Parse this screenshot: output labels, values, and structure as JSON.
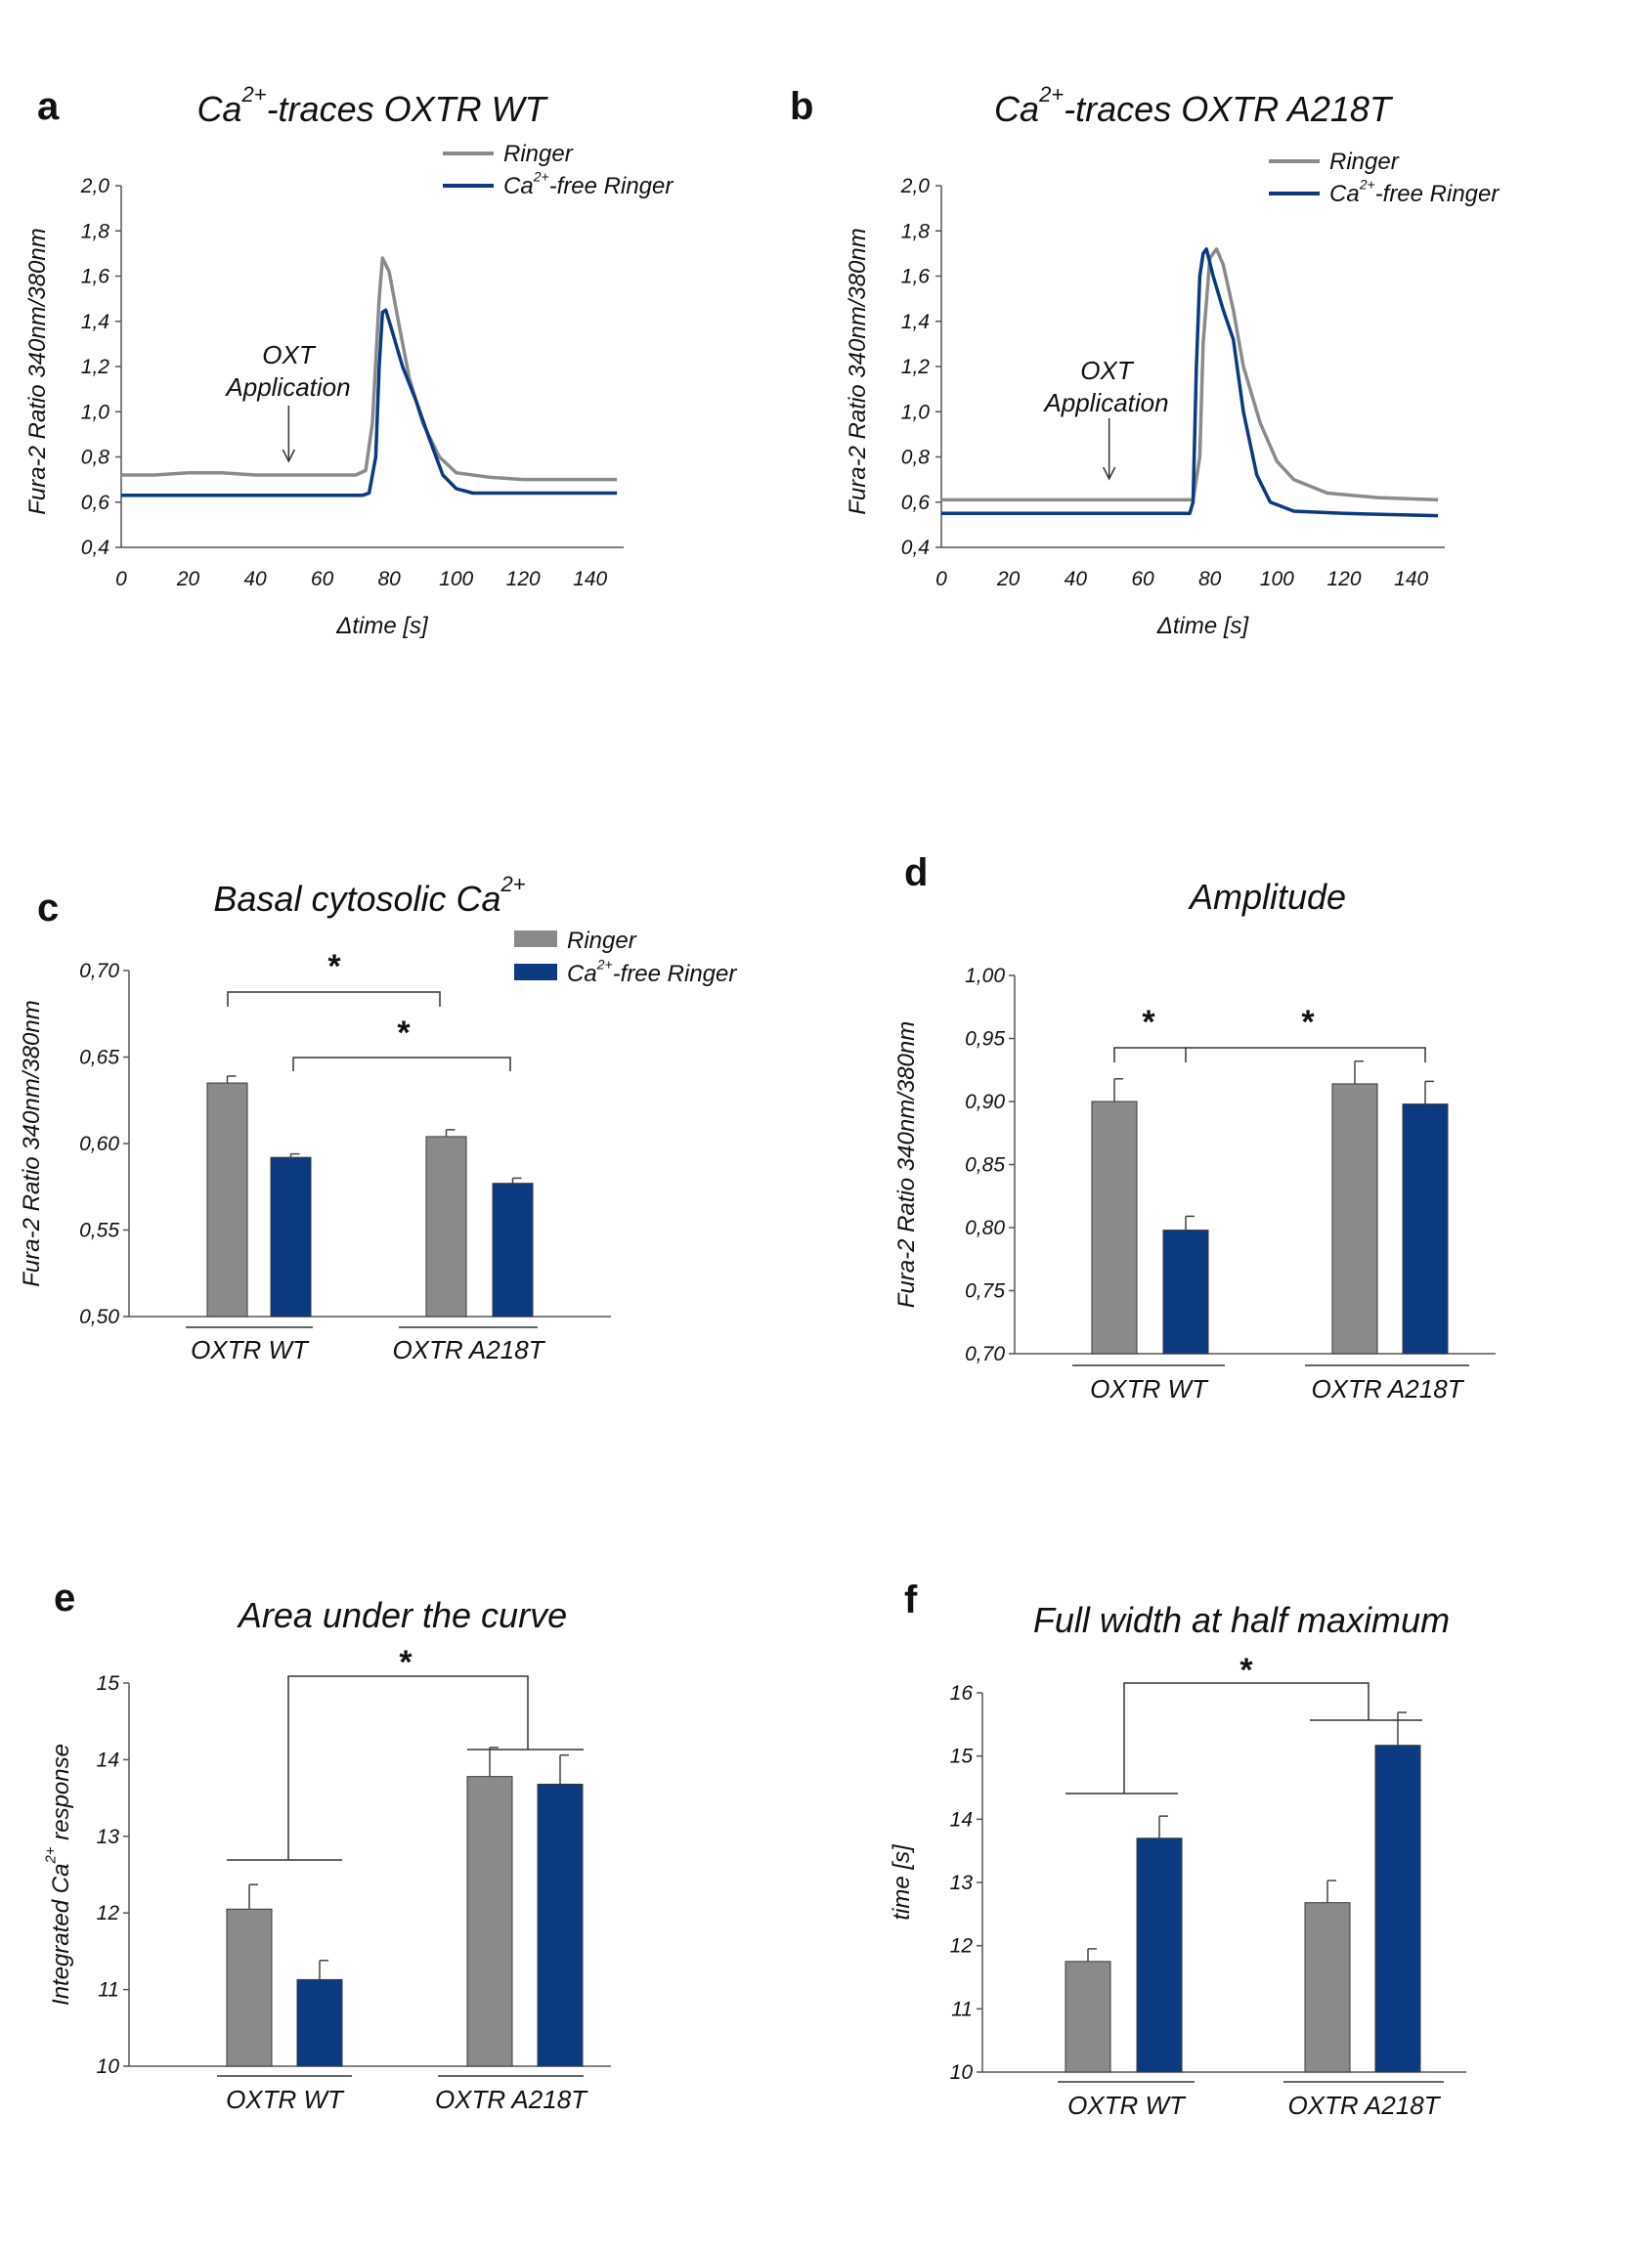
{
  "colors": {
    "ringer": "#8a8a8a",
    "cafree": "#0b3a80",
    "axis": "#555555"
  },
  "chart_data": [
    {
      "id": "a",
      "type": "line",
      "letter": "a",
      "title_main": "Ca",
      "title_sup": "2+",
      "title_rest": "-traces OXTR WT",
      "xlabel": "Δtime [s]",
      "ylabel": "Fura-2 Ratio 340nm/380nm",
      "xlim": [
        0,
        150
      ],
      "ylim": [
        0.4,
        2.0
      ],
      "x_ticks": [
        "0",
        "20",
        "40",
        "60",
        "80",
        "100",
        "120",
        "140"
      ],
      "y_ticks": [
        "0,4",
        "0,6",
        "0,8",
        "1,0",
        "1,2",
        "1,4",
        "1,6",
        "1,8",
        "2,0"
      ],
      "legend": [
        {
          "name_main": "Ringer",
          "name_sup": "",
          "name_rest": ""
        },
        {
          "name_main": "Ca",
          "name_sup": "2+",
          "name_rest": "-free Ringer"
        }
      ],
      "annotation": {
        "line1": "OXT",
        "line2": "Application",
        "x": 50
      },
      "series": [
        {
          "key": "ringer",
          "points": [
            [
              0,
              0.72
            ],
            [
              10,
              0.72
            ],
            [
              20,
              0.73
            ],
            [
              30,
              0.73
            ],
            [
              40,
              0.72
            ],
            [
              50,
              0.72
            ],
            [
              60,
              0.72
            ],
            [
              70,
              0.72
            ],
            [
              73,
              0.74
            ],
            [
              75,
              0.95
            ],
            [
              77,
              1.5
            ],
            [
              78,
              1.68
            ],
            [
              80,
              1.62
            ],
            [
              83,
              1.38
            ],
            [
              86,
              1.15
            ],
            [
              90,
              0.95
            ],
            [
              95,
              0.8
            ],
            [
              100,
              0.73
            ],
            [
              110,
              0.71
            ],
            [
              120,
              0.7
            ],
            [
              130,
              0.7
            ],
            [
              140,
              0.7
            ],
            [
              148,
              0.7
            ]
          ]
        },
        {
          "key": "cafree",
          "points": [
            [
              0,
              0.63
            ],
            [
              20,
              0.63
            ],
            [
              40,
              0.63
            ],
            [
              60,
              0.63
            ],
            [
              72,
              0.63
            ],
            [
              74,
              0.64
            ],
            [
              76,
              0.8
            ],
            [
              77,
              1.2
            ],
            [
              78,
              1.44
            ],
            [
              79,
              1.45
            ],
            [
              81,
              1.35
            ],
            [
              84,
              1.2
            ],
            [
              88,
              1.05
            ],
            [
              92,
              0.88
            ],
            [
              96,
              0.72
            ],
            [
              100,
              0.66
            ],
            [
              105,
              0.64
            ],
            [
              120,
              0.64
            ],
            [
              140,
              0.64
            ],
            [
              148,
              0.64
            ]
          ]
        }
      ]
    },
    {
      "id": "b",
      "type": "line",
      "letter": "b",
      "title_main": "Ca",
      "title_sup": "2+",
      "title_rest": "-traces OXTR A218T",
      "xlabel": "Δtime [s]",
      "ylabel": "Fura-2 Ratio 340nm/380nm",
      "xlim": [
        0,
        150
      ],
      "ylim": [
        0.4,
        2.0
      ],
      "x_ticks": [
        "0",
        "20",
        "40",
        "60",
        "80",
        "100",
        "120",
        "140"
      ],
      "y_ticks": [
        "0,4",
        "0,6",
        "0,8",
        "1,0",
        "1,2",
        "1,4",
        "1,6",
        "1,8",
        "2,0"
      ],
      "legend": [
        {
          "name_main": "Ringer",
          "name_sup": "",
          "name_rest": ""
        },
        {
          "name_main": "Ca",
          "name_sup": "2+",
          "name_rest": "-free Ringer"
        }
      ],
      "annotation": {
        "line1": "OXT",
        "line2": "Application",
        "x": 50
      },
      "series": [
        {
          "key": "ringer",
          "points": [
            [
              0,
              0.61
            ],
            [
              20,
              0.61
            ],
            [
              40,
              0.61
            ],
            [
              60,
              0.61
            ],
            [
              75,
              0.61
            ],
            [
              77,
              0.8
            ],
            [
              78,
              1.3
            ],
            [
              80,
              1.68
            ],
            [
              82,
              1.72
            ],
            [
              84,
              1.65
            ],
            [
              87,
              1.45
            ],
            [
              90,
              1.2
            ],
            [
              95,
              0.95
            ],
            [
              100,
              0.78
            ],
            [
              105,
              0.7
            ],
            [
              115,
              0.64
            ],
            [
              130,
              0.62
            ],
            [
              148,
              0.61
            ]
          ]
        },
        {
          "key": "cafree",
          "points": [
            [
              0,
              0.55
            ],
            [
              20,
              0.55
            ],
            [
              40,
              0.55
            ],
            [
              60,
              0.55
            ],
            [
              74,
              0.55
            ],
            [
              75,
              0.6
            ],
            [
              76,
              1.2
            ],
            [
              77,
              1.6
            ],
            [
              78,
              1.7
            ],
            [
              79,
              1.72
            ],
            [
              81,
              1.6
            ],
            [
              84,
              1.45
            ],
            [
              87,
              1.32
            ],
            [
              90,
              1.0
            ],
            [
              94,
              0.72
            ],
            [
              98,
              0.6
            ],
            [
              105,
              0.56
            ],
            [
              120,
              0.55
            ],
            [
              148,
              0.54
            ]
          ]
        }
      ]
    },
    {
      "id": "c",
      "type": "bar",
      "letter": "c",
      "title_main": "Basal cytosolic Ca",
      "title_sup": "2+",
      "title_rest": "",
      "ylabel": "Fura-2 Ratio 340nm/380nm",
      "ylim": [
        0.5,
        0.7
      ],
      "y_ticks": [
        "0,50",
        "0,55",
        "0,60",
        "0,65",
        "0,70"
      ],
      "categories": [
        "OXTR WT",
        "OXTR A218T"
      ],
      "legend": [
        {
          "name_main": "Ringer",
          "name_sup": "",
          "name_rest": ""
        },
        {
          "name_main": "Ca",
          "name_sup": "2+",
          "name_rest": "-free Ringer"
        }
      ],
      "series": [
        {
          "key": "ringer",
          "values": [
            0.635,
            0.604
          ],
          "errors": [
            0.004,
            0.004
          ]
        },
        {
          "key": "cafree",
          "values": [
            0.592,
            0.577
          ],
          "errors": [
            0.002,
            0.003
          ]
        }
      ],
      "significance": [
        "*",
        "*"
      ]
    },
    {
      "id": "d",
      "type": "bar",
      "letter": "d",
      "title_main": "Amplitude",
      "title_sup": "",
      "title_rest": "",
      "ylabel": "Fura-2 Ratio 340nm/380nm",
      "ylim": [
        0.7,
        1.0
      ],
      "y_ticks": [
        "0,70",
        "0,75",
        "0,80",
        "0,85",
        "0,90",
        "0,95",
        "1,00"
      ],
      "categories": [
        "OXTR WT",
        "OXTR A218T"
      ],
      "series": [
        {
          "key": "ringer",
          "values": [
            0.9,
            0.914
          ],
          "errors": [
            0.018,
            0.018
          ]
        },
        {
          "key": "cafree",
          "values": [
            0.798,
            0.898
          ],
          "errors": [
            0.011,
            0.018
          ]
        }
      ],
      "significance": [
        "*",
        "*"
      ]
    },
    {
      "id": "e",
      "type": "bar",
      "letter": "e",
      "title_main": "Area under the curve",
      "title_sup": "",
      "title_rest": "",
      "ylabel_main": "Integrated Ca",
      "ylabel_sup": "2+",
      "ylabel_rest": " response",
      "ylim": [
        10,
        15
      ],
      "y_ticks": [
        "10",
        "11",
        "12",
        "13",
        "14",
        "15"
      ],
      "categories": [
        "OXTR WT",
        "OXTR A218T"
      ],
      "series": [
        {
          "key": "ringer",
          "values": [
            12.05,
            13.78
          ],
          "errors": [
            0.32,
            0.38
          ]
        },
        {
          "key": "cafree",
          "values": [
            11.13,
            13.68
          ],
          "errors": [
            0.25,
            0.38
          ]
        }
      ],
      "significance": [
        "*"
      ]
    },
    {
      "id": "f",
      "type": "bar",
      "letter": "f",
      "title_main": "Full width at half maximum",
      "title_sup": "",
      "title_rest": "",
      "ylabel": "time [s]",
      "ylim": [
        10,
        16
      ],
      "y_ticks": [
        "10",
        "11",
        "12",
        "13",
        "14",
        "15",
        "16"
      ],
      "categories": [
        "OXTR WT",
        "OXTR A218T"
      ],
      "series": [
        {
          "key": "ringer",
          "values": [
            11.75,
            12.68
          ],
          "errors": [
            0.2,
            0.35
          ]
        },
        {
          "key": "cafree",
          "values": [
            13.7,
            15.17
          ],
          "errors": [
            0.35,
            0.52
          ]
        }
      ],
      "significance": [
        "*"
      ]
    }
  ]
}
